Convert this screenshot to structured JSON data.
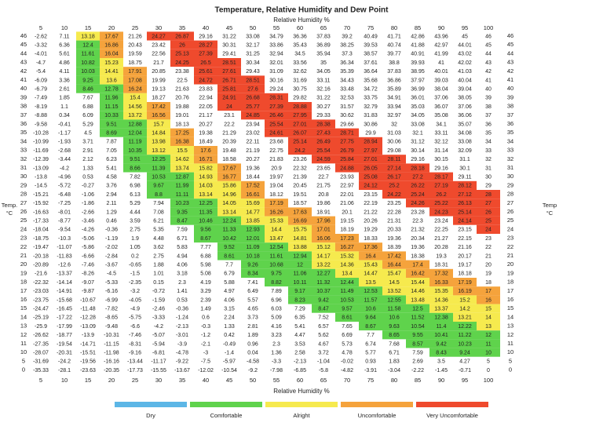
{
  "chart_data": {
    "type": "heatmap",
    "title": "Temperature, Relative Humidity and Dew Point",
    "x_label": "Relative Humidity %",
    "y_label": [
      "Temp.",
      "°C"
    ],
    "y2_label": [
      "Temp",
      "°C"
    ],
    "x": [
      5,
      10,
      15,
      20,
      25,
      30,
      35,
      40,
      45,
      50,
      55,
      60,
      65,
      70,
      75,
      80,
      85,
      90,
      95,
      100
    ],
    "y": [
      46,
      45,
      44,
      43,
      42,
      41,
      40,
      39,
      38,
      37,
      36,
      35,
      34,
      33,
      32,
      31,
      30,
      29,
      28,
      27,
      26,
      25,
      24,
      23,
      22,
      21,
      20,
      19,
      18,
      17,
      16,
      15,
      14,
      13,
      12,
      11,
      10,
      5,
      0
    ],
    "values": [
      [
        -2.62,
        7.11,
        13.18,
        17.67,
        21.26,
        24.27,
        26.87,
        29.16,
        31.22,
        33.08,
        34.79,
        36.36,
        37.83,
        39.2,
        40.49,
        41.71,
        42.86,
        43.96,
        45,
        46
      ],
      [
        -3.32,
        6.36,
        12.4,
        16.86,
        20.43,
        23.42,
        26,
        28.27,
        30.31,
        32.17,
        33.86,
        35.43,
        36.89,
        38.25,
        39.53,
        40.74,
        41.88,
        42.97,
        44.01,
        45
      ],
      [
        -4.01,
        5.61,
        11.61,
        16.04,
        19.59,
        22.56,
        25.13,
        27.39,
        29.41,
        31.25,
        32.94,
        34.5,
        35.94,
        37.3,
        38.57,
        39.77,
        40.91,
        41.99,
        43.02,
        44
      ],
      [
        -4.7,
        4.86,
        10.82,
        15.23,
        18.75,
        21.7,
        24.25,
        26.5,
        28.51,
        30.34,
        32.01,
        33.56,
        35,
        36.34,
        37.61,
        38.8,
        39.93,
        41,
        42.02,
        43
      ],
      [
        -5.4,
        4.11,
        10.03,
        14.41,
        17.91,
        20.85,
        23.38,
        25.61,
        27.61,
        29.43,
        31.09,
        32.62,
        34.05,
        35.39,
        36.64,
        37.83,
        38.95,
        40.01,
        41.03,
        42
      ],
      [
        -6.09,
        3.36,
        9.25,
        13.6,
        17.08,
        19.99,
        22.5,
        24.72,
        26.71,
        28.51,
        30.16,
        31.69,
        33.11,
        34.43,
        35.68,
        36.86,
        37.97,
        39.03,
        40.04,
        41
      ],
      [
        -6.79,
        2.61,
        8.46,
        12.78,
        16.24,
        19.13,
        21.63,
        23.83,
        25.81,
        27.6,
        29.24,
        30.75,
        32.16,
        33.48,
        34.72,
        35.89,
        36.99,
        38.04,
        39.04,
        40
      ],
      [
        -7.49,
        1.85,
        7.67,
        11.96,
        15.4,
        18.27,
        20.76,
        22.94,
        24.91,
        26.68,
        28.31,
        29.82,
        31.22,
        32.53,
        33.75,
        34.91,
        36.01,
        37.06,
        38.05,
        39
      ],
      [
        -8.19,
        1.1,
        6.88,
        11.15,
        14.56,
        17.42,
        19.88,
        22.05,
        24,
        25.77,
        27.39,
        28.88,
        30.27,
        31.57,
        32.79,
        33.94,
        35.03,
        36.07,
        37.06,
        38
      ],
      [
        -8.88,
        0.34,
        6.09,
        10.33,
        13.72,
        16.56,
        19.01,
        21.17,
        23.1,
        24.85,
        26.46,
        27.95,
        29.33,
        30.62,
        31.83,
        32.97,
        34.05,
        35.08,
        36.06,
        37
      ],
      [
        -9.58,
        -0.41,
        5.29,
        9.51,
        12.88,
        15.7,
        18.13,
        20.27,
        22.2,
        23.94,
        25.54,
        27.01,
        28.38,
        29.66,
        30.86,
        32,
        33.08,
        34.1,
        35.07,
        36
      ],
      [
        -10.28,
        -1.17,
        4.5,
        8.69,
        12.04,
        14.84,
        17.25,
        19.38,
        21.29,
        23.02,
        24.61,
        26.07,
        27.43,
        28.71,
        29.9,
        31.03,
        32.1,
        33.11,
        34.08,
        35
      ],
      [
        -10.99,
        -1.93,
        3.71,
        7.87,
        11.19,
        13.98,
        16.38,
        18.49,
        20.39,
        22.11,
        23.68,
        25.14,
        26.49,
        27.75,
        28.94,
        30.06,
        31.12,
        32.12,
        33.08,
        34
      ],
      [
        -11.69,
        -2.68,
        2.91,
        7.05,
        10.35,
        13.12,
        15.5,
        17.6,
        19.48,
        21.19,
        22.75,
        24.2,
        25.54,
        26.79,
        27.97,
        29.08,
        30.14,
        31.14,
        32.09,
        33
      ],
      [
        -12.39,
        -3.44,
        2.12,
        6.23,
        9.51,
        12.25,
        14.62,
        16.71,
        18.58,
        20.27,
        21.83,
        23.26,
        24.59,
        25.84,
        27.01,
        28.11,
        29.16,
        30.15,
        31.1,
        32
      ],
      [
        -13.09,
        -4.2,
        1.33,
        5.41,
        8.66,
        11.39,
        13.74,
        15.82,
        17.67,
        19.36,
        20.9,
        22.32,
        23.65,
        24.88,
        26.05,
        27.14,
        28.18,
        29.16,
        30.1,
        31
      ],
      [
        -13.8,
        -4.96,
        0.53,
        4.58,
        7.82,
        10.53,
        12.87,
        14.93,
        16.77,
        18.44,
        19.97,
        21.39,
        22.7,
        23.93,
        25.08,
        26.17,
        27.2,
        28.17,
        29.11,
        30
      ],
      [
        -14.5,
        -5.72,
        -0.27,
        3.76,
        6.98,
        9.67,
        11.99,
        14.03,
        15.86,
        17.52,
        19.04,
        20.45,
        21.75,
        22.97,
        24.12,
        25.2,
        26.22,
        27.19,
        28.12,
        29
      ],
      [
        -15.21,
        -6.48,
        -1.06,
        2.94,
        6.13,
        8.8,
        11.11,
        13.14,
        14.96,
        16.61,
        18.12,
        19.51,
        20.8,
        22.01,
        23.15,
        24.22,
        25.24,
        26.2,
        27.12,
        28
      ],
      [
        -15.92,
        -7.25,
        -1.86,
        2.11,
        5.29,
        7.94,
        10.23,
        12.25,
        14.05,
        15.69,
        17.19,
        18.57,
        19.86,
        21.06,
        22.19,
        23.25,
        24.26,
        25.22,
        26.13,
        27
      ],
      [
        -16.63,
        -8.01,
        -2.66,
        1.29,
        4.44,
        7.08,
        9.35,
        11.35,
        13.14,
        14.77,
        16.26,
        17.63,
        18.91,
        20.1,
        21.22,
        22.28,
        23.28,
        24.23,
        25.14,
        26
      ],
      [
        -17.33,
        -8.77,
        -3.46,
        0.46,
        3.59,
        6.21,
        8.47,
        10.46,
        12.24,
        13.85,
        15.33,
        16.69,
        17.96,
        19.15,
        20.26,
        21.31,
        22.3,
        23.24,
        24.14,
        25
      ],
      [
        -18.04,
        -9.54,
        -4.26,
        -0.36,
        2.75,
        5.35,
        7.59,
        9.56,
        11.33,
        12.93,
        14.4,
        15.75,
        17.01,
        18.19,
        19.29,
        20.33,
        21.32,
        22.25,
        23.15,
        24
      ],
      [
        -18.75,
        -10.3,
        -5.06,
        -1.19,
        1.9,
        4.48,
        6.71,
        8.67,
        10.42,
        12.01,
        13.47,
        14.81,
        16.06,
        17.23,
        18.33,
        19.36,
        20.34,
        21.27,
        22.15,
        23
      ],
      [
        -19.47,
        -11.07,
        -5.86,
        -2.02,
        1.05,
        3.62,
        5.83,
        7.77,
        9.52,
        11.09,
        12.54,
        13.88,
        15.12,
        16.27,
        17.36,
        18.39,
        19.36,
        20.28,
        21.16,
        22
      ],
      [
        -20.18,
        -11.83,
        -6.66,
        -2.84,
        0.2,
        2.75,
        4.94,
        6.88,
        8.61,
        10.18,
        11.61,
        12.94,
        14.17,
        15.32,
        16.4,
        17.42,
        18.38,
        19.3,
        20.17,
        21
      ],
      [
        -20.89,
        -12.6,
        -7.46,
        -3.67,
        -0.65,
        1.88,
        4.06,
        5.98,
        7.7,
        9.26,
        10.68,
        12,
        13.22,
        14.36,
        15.43,
        16.44,
        17.4,
        18.31,
        19.17,
        20
      ],
      [
        -21.6,
        -13.37,
        -8.26,
        -4.5,
        -1.5,
        1.01,
        3.18,
        5.08,
        6.79,
        8.34,
        9.75,
        11.06,
        12.27,
        13.4,
        14.47,
        15.47,
        16.42,
        17.32,
        18.18,
        19
      ],
      [
        -22.32,
        -14.14,
        -9.07,
        -5.33,
        -2.35,
        0.15,
        2.3,
        4.19,
        5.88,
        7.41,
        8.82,
        10.11,
        11.32,
        12.44,
        13.5,
        14.5,
        15.44,
        16.33,
        17.19,
        18
      ],
      [
        -23.03,
        -14.91,
        -9.87,
        -6.16,
        -3.2,
        -0.72,
        1.41,
        3.29,
        4.97,
        6.49,
        7.89,
        9.17,
        10.37,
        11.49,
        12.53,
        13.52,
        14.46,
        15.35,
        16.19,
        17
      ],
      [
        -23.75,
        -15.68,
        -10.67,
        -6.99,
        -4.05,
        -1.59,
        0.53,
        2.39,
        4.06,
        5.57,
        6.96,
        8.23,
        9.42,
        10.53,
        11.57,
        12.55,
        13.48,
        14.36,
        15.2,
        16
      ],
      [
        -24.47,
        -16.45,
        -11.48,
        -7.82,
        -4.9,
        -2.46,
        -0.36,
        1.49,
        3.15,
        4.65,
        6.03,
        7.29,
        8.47,
        9.57,
        10.6,
        11.58,
        12.5,
        13.37,
        14.2,
        15
      ],
      [
        -25.19,
        -17.22,
        -12.28,
        -8.65,
        -5.75,
        -3.33,
        -1.24,
        0.6,
        2.24,
        3.73,
        5.09,
        6.35,
        7.52,
        8.61,
        9.64,
        10.6,
        11.52,
        12.38,
        13.21,
        14
      ],
      [
        -25.9,
        -17.99,
        -13.09,
        -9.48,
        -6.6,
        -4.2,
        -2.13,
        -0.3,
        1.33,
        2.81,
        4.16,
        5.41,
        6.57,
        7.65,
        8.67,
        9.63,
        10.54,
        11.4,
        12.22,
        13
      ],
      [
        -26.62,
        -18.77,
        -13.9,
        -10.31,
        -7.46,
        -5.07,
        -3.01,
        -1.2,
        0.42,
        1.89,
        3.23,
        4.47,
        5.62,
        6.69,
        7.7,
        8.65,
        9.55,
        10.41,
        11.22,
        12
      ],
      [
        -27.35,
        -19.54,
        -14.71,
        -11.15,
        -8.31,
        -5.94,
        -3.9,
        -2.1,
        -0.49,
        0.96,
        2.3,
        3.53,
        4.67,
        5.73,
        6.74,
        7.68,
        8.57,
        9.42,
        10.23,
        11
      ],
      [
        -28.07,
        -20.31,
        -15.51,
        -11.98,
        -9.16,
        -6.81,
        -4.78,
        -3,
        -1.4,
        0.04,
        1.36,
        2.58,
        3.72,
        4.78,
        5.77,
        6.71,
        7.59,
        8.43,
        9.24,
        10
      ],
      [
        -31.69,
        -24.2,
        -19.56,
        -16.16,
        -13.44,
        -11.17,
        -9.22,
        -7.5,
        -5.97,
        -4.58,
        -3.3,
        -2.13,
        -1.04,
        -0.02,
        0.93,
        1.83,
        2.69,
        3.5,
        4.27,
        5
      ],
      [
        -35.33,
        -28.1,
        -23.63,
        -20.35,
        -17.73,
        -15.55,
        -13.67,
        -12.02,
        -10.54,
        -9.2,
        -7.98,
        -6.85,
        -5.8,
        -4.82,
        -3.91,
        -3.04,
        -2.22,
        -1.45,
        -0.71,
        0
      ]
    ],
    "legend": [
      {
        "name": "Dry",
        "color": "#5cb6e6"
      },
      {
        "name": "Comfortable",
        "color": "#5fd34c"
      },
      {
        "name": "Alright",
        "color": "#f6ea4e"
      },
      {
        "name": "Uncomfortable",
        "color": "#f5a33c"
      },
      {
        "name": "Very Uncomfortable",
        "color": "#ef4a2d"
      }
    ]
  }
}
